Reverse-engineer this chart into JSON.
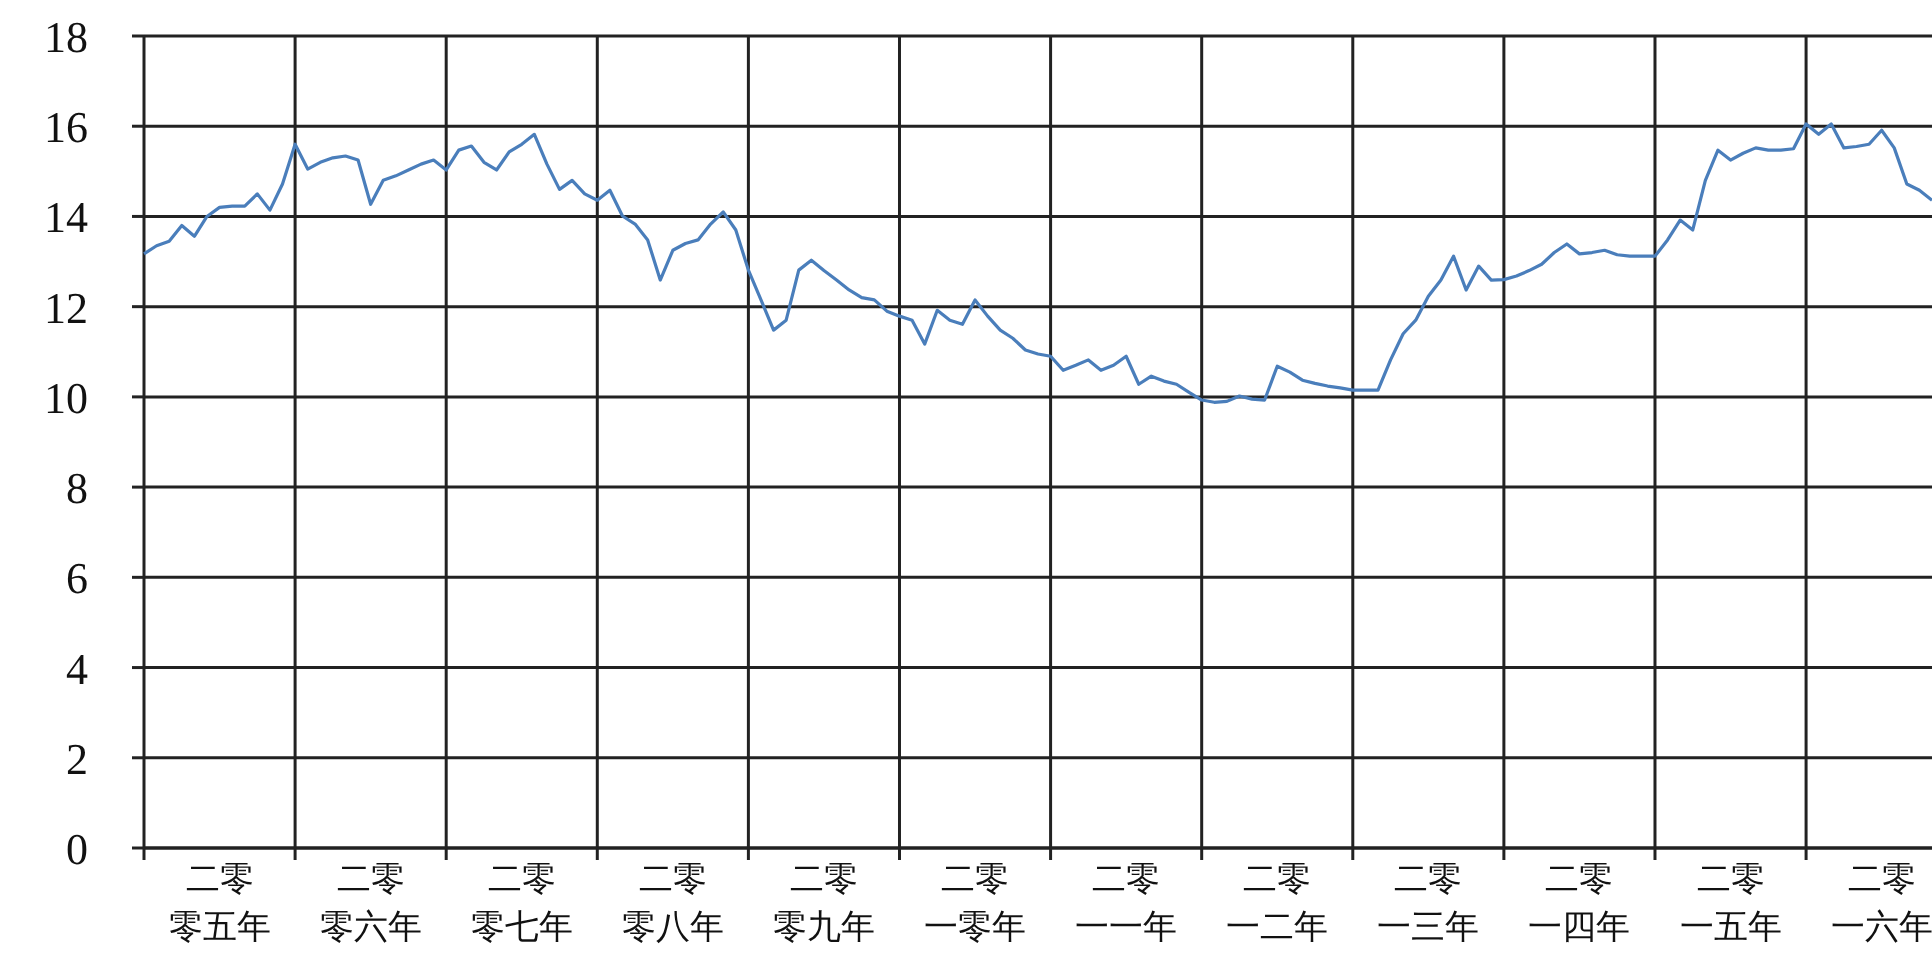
{
  "chart_data": {
    "type": "line",
    "ylim": [
      0,
      18
    ],
    "yticks": [
      0,
      2,
      4,
      6,
      8,
      10,
      12,
      14,
      16,
      18
    ],
    "categories": [
      null,
      null,
      null,
      null,
      null,
      null,
      "二零零五年",
      null,
      null,
      null,
      null,
      null,
      null,
      null,
      null,
      null,
      null,
      null,
      "二零零六年",
      null,
      null,
      null,
      null,
      null,
      null,
      null,
      null,
      null,
      null,
      null,
      "二零零七年",
      null,
      null,
      null,
      null,
      null,
      null,
      null,
      null,
      null,
      null,
      null,
      "二零零八年",
      null,
      null,
      null,
      null,
      null,
      null,
      null,
      null,
      null,
      null,
      null,
      "二零零九年",
      null,
      null,
      null,
      null,
      null,
      null,
      null,
      null,
      null,
      null,
      null,
      "二零一零年",
      null,
      null,
      null,
      null,
      null,
      null,
      null,
      null,
      null,
      null,
      null,
      "二零一一年",
      null,
      null,
      null,
      null,
      null,
      null,
      null,
      null,
      null,
      null,
      null,
      "二零一二年",
      null,
      null,
      null,
      null,
      null,
      null,
      null,
      null,
      null,
      null,
      null,
      "二零一三年",
      null,
      null,
      null,
      null,
      null,
      null,
      null,
      null,
      null,
      null,
      null,
      "二零一四年",
      null,
      null,
      null,
      null,
      null,
      null,
      null,
      null,
      null,
      null,
      null,
      "二零一五年",
      null,
      null,
      null,
      null,
      null,
      null,
      null,
      null,
      null,
      null,
      null,
      "二零一六年",
      null,
      null,
      null,
      null
    ],
    "grid": true,
    "marker": "none",
    "line_style": "solid",
    "series": [
      {
        "color": "#4a7ebb",
        "values": [
          13.17,
          13.35,
          13.45,
          13.8,
          13.56,
          14.0,
          14.2,
          14.23,
          14.23,
          14.5,
          14.14,
          14.72,
          15.6,
          15.05,
          15.2,
          15.3,
          15.34,
          15.25,
          14.27,
          14.8,
          14.9,
          15.03,
          15.16,
          15.25,
          15.03,
          15.47,
          15.56,
          15.2,
          15.03,
          15.43,
          15.6,
          15.82,
          15.16,
          14.6,
          14.8,
          14.5,
          14.36,
          14.58,
          14.01,
          13.83,
          13.48,
          12.59,
          13.25,
          13.4,
          13.48,
          13.83,
          14.1,
          13.7,
          12.81,
          12.15,
          11.48,
          11.7,
          12.81,
          13.03,
          12.8,
          12.59,
          12.37,
          12.2,
          12.15,
          11.9,
          11.79,
          11.7,
          11.17,
          11.92,
          11.7,
          11.61,
          12.15,
          11.79,
          11.48,
          11.3,
          11.04,
          10.95,
          10.9,
          10.59,
          10.7,
          10.82,
          10.59,
          10.7,
          10.9,
          10.28,
          10.46,
          10.35,
          10.28,
          10.1,
          9.93,
          9.88,
          9.9,
          10.02,
          9.95,
          9.93,
          10.68,
          10.55,
          10.37,
          10.3,
          10.24,
          10.2,
          10.15,
          10.15,
          10.15,
          10.82,
          11.4,
          11.7,
          12.23,
          12.59,
          13.12,
          12.37,
          12.9,
          12.59,
          12.6,
          12.68,
          12.8,
          12.94,
          13.2,
          13.39,
          13.17,
          13.2,
          13.25,
          13.15,
          13.12,
          13.12,
          13.12,
          13.48,
          13.92,
          13.7,
          14.8,
          15.47,
          15.25,
          15.4,
          15.52,
          15.47,
          15.47,
          15.5,
          16.05,
          15.82,
          16.05,
          15.52,
          15.55,
          15.6,
          15.91,
          15.52,
          14.72,
          14.58,
          14.36
        ]
      }
    ]
  }
}
